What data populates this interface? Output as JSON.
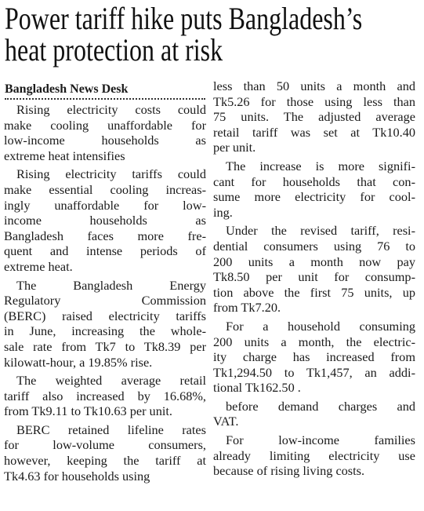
{
  "headline": {
    "lines": [
      "Power tariff hike puts Bangladesh’s",
      "heat protection at risk"
    ]
  },
  "byline": "Bangladesh News Desk",
  "columns": [
    [
      {
        "lines": [
          "Rising electricity costs could",
          "make cooling unaffordable for",
          "low-income households as",
          "extreme heat intensifies"
        ]
      },
      {
        "lines": [
          "Rising electricity tariffs could",
          "make essential cooling increas-",
          "ingly unaffordable for low-",
          "income households as",
          "Bangladesh faces more fre-",
          "quent and intense periods of",
          "extreme heat."
        ]
      },
      {
        "lines": [
          "The Bangladesh Energy",
          "Regulatory Commission",
          "(BERC) raised electricity tariffs",
          "in June, increasing the whole-",
          "sale rate from Tk7 to Tk8.39 per",
          "kilowatt-hour, a 19.85% rise."
        ]
      },
      {
        "lines": [
          "The weighted average retail",
          "tariff also increased by 16.68%,",
          "from Tk9.11 to Tk10.63 per unit."
        ]
      },
      {
        "lines": [
          "BERC retained lifeline rates",
          "for low-volume consumers,",
          "however, keeping the tariff at",
          "Tk4.63 for households using"
        ]
      }
    ],
    [
      {
        "lines": [
          "less than 50 units a month and",
          "Tk5.26 for those using less than",
          "75 units. The adjusted average",
          "retail tariff was set at Tk10.40",
          "per unit."
        ]
      },
      {
        "lines": [
          "The increase is more signifi-",
          "cant for households that con-",
          "sume more electricity for cool-",
          "ing."
        ]
      },
      {
        "lines": [
          "Under the revised tariff, resi-",
          "dential consumers using 76 to",
          "200 units a month now pay",
          "Tk8.50 per unit for consump-",
          "tion above the first 75 units, up",
          "from Tk7.20."
        ]
      },
      {
        "lines": [
          "For a household consuming",
          "200 units a month, the electric-",
          "ity charge has increased from",
          "Tk1,294.50 to Tk1,457, an addi-",
          "tional Tk162.50 ."
        ]
      },
      {
        "lines": [
          "before demand charges and",
          "VAT."
        ]
      },
      {
        "lines": [
          "For low-income families",
          "already limiting electricity use",
          "because of rising living costs."
        ]
      }
    ]
  ]
}
